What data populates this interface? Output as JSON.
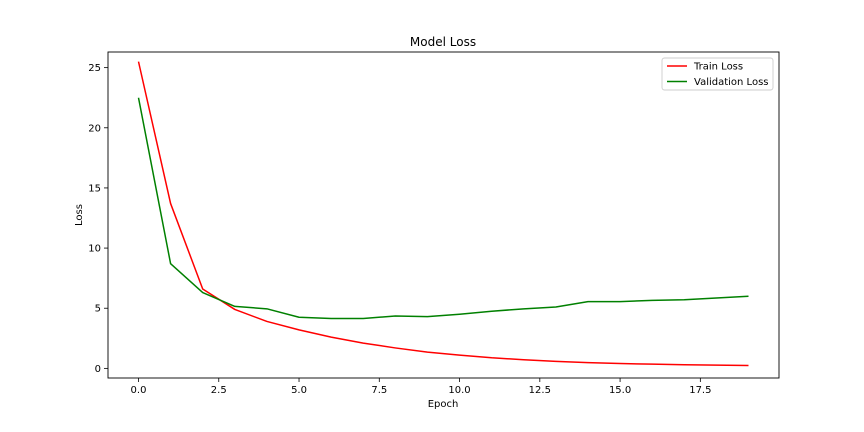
{
  "chart_data": {
    "type": "line",
    "title": "Model Loss",
    "xlabel": "Epoch",
    "ylabel": "Loss",
    "xlim": [
      -0.95,
      19.95
    ],
    "ylim": [
      -0.8,
      26.3
    ],
    "xticks": [
      0.0,
      2.5,
      5.0,
      7.5,
      10.0,
      12.5,
      15.0,
      17.5
    ],
    "xtick_labels": [
      "0.0",
      "2.5",
      "5.0",
      "7.5",
      "10.0",
      "12.5",
      "15.0",
      "17.5"
    ],
    "yticks": [
      0,
      5,
      10,
      15,
      20,
      25
    ],
    "ytick_labels": [
      "0",
      "5",
      "10",
      "15",
      "20",
      "25"
    ],
    "grid": false,
    "legend_position": "top-right",
    "x": [
      0,
      1,
      2,
      3,
      4,
      5,
      6,
      7,
      8,
      9,
      10,
      11,
      12,
      13,
      14,
      15,
      16,
      17,
      18,
      19
    ],
    "series": [
      {
        "name": "Train Loss",
        "color": "#ff0000",
        "values": [
          25.5,
          13.7,
          6.6,
          4.9,
          3.9,
          3.2,
          2.6,
          2.1,
          1.7,
          1.35,
          1.1,
          0.88,
          0.72,
          0.58,
          0.48,
          0.4,
          0.35,
          0.3,
          0.27,
          0.24
        ]
      },
      {
        "name": "Validation Loss",
        "color": "#008000",
        "values": [
          22.5,
          8.7,
          6.3,
          5.15,
          4.95,
          4.25,
          4.15,
          4.15,
          4.35,
          4.3,
          4.5,
          4.75,
          4.95,
          5.1,
          5.55,
          5.55,
          5.65,
          5.7,
          5.85,
          6.0
        ]
      }
    ]
  }
}
